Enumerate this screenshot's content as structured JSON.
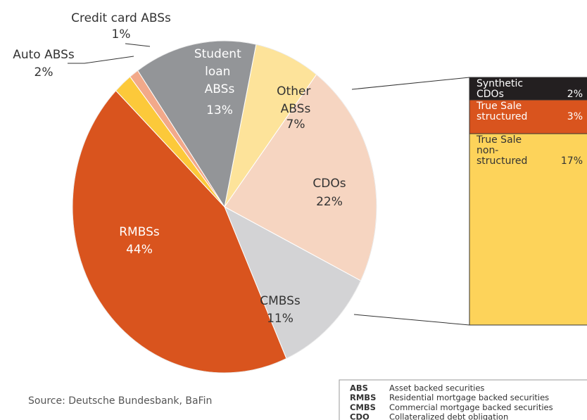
{
  "chart_data": {
    "type": "pie",
    "categories": [
      "Other ABSs",
      "CDOs",
      "CMBSs",
      "RMBSs",
      "Auto ABSs",
      "Credit card ABSs",
      "Student loan ABSs"
    ],
    "values": [
      7,
      22,
      11,
      44,
      2,
      1,
      13
    ],
    "value_labels": [
      "7%",
      "22%",
      "11%",
      "44%",
      "2%",
      "1%",
      "13%"
    ],
    "colors": [
      "#fde39a",
      "#f6d5c1",
      "#d3d3d5",
      "#d9541e",
      "#fcc93a",
      "#f2a98a",
      "#939598"
    ],
    "breakdown": {
      "type": "stacked-bar",
      "categories": [
        "Synthetic CDOs",
        "True Sale structured",
        "True Sale non-structured"
      ],
      "values": [
        2,
        3,
        17
      ],
      "value_labels": [
        "2%",
        "3%",
        "17%"
      ],
      "colors": [
        "#231f20",
        "#d9541e",
        "#fdd35a"
      ]
    },
    "legend": [
      {
        "abbr": "ABS",
        "text": "Asset backed securities"
      },
      {
        "abbr": "RMBS",
        "text": "Residential mortgage backed securities"
      },
      {
        "abbr": "CMBS",
        "text": "Commercial mortgage backed securities"
      },
      {
        "abbr": "CDO",
        "text": "Collateralized debt obligation"
      }
    ],
    "source": "Source: Deutsche Bundesbank, BaFin"
  }
}
